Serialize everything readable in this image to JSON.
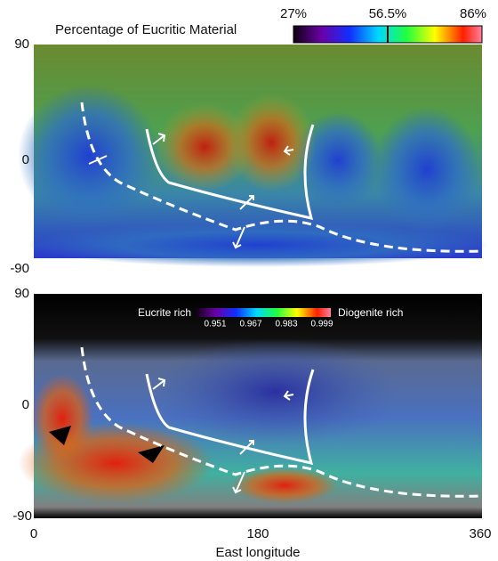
{
  "top_panel": {
    "colorbar_title": "Percentage of Eucritic Material",
    "colorbar_ticks": [
      "27%",
      "56.5%",
      "86%"
    ],
    "y_ticks": [
      "90",
      "0",
      "-90"
    ]
  },
  "bottom_panel": {
    "colorbar_left_label": "Eucrite rich",
    "colorbar_right_label": "Diogenite rich",
    "colorbar_ticks": [
      "0.951",
      "0.967",
      "0.983",
      "0.999"
    ],
    "y_ticks": [
      "90",
      "0",
      "-90"
    ]
  },
  "x_axis": {
    "ticks": [
      "0",
      "180",
      "360"
    ],
    "label": "East longitude"
  }
}
